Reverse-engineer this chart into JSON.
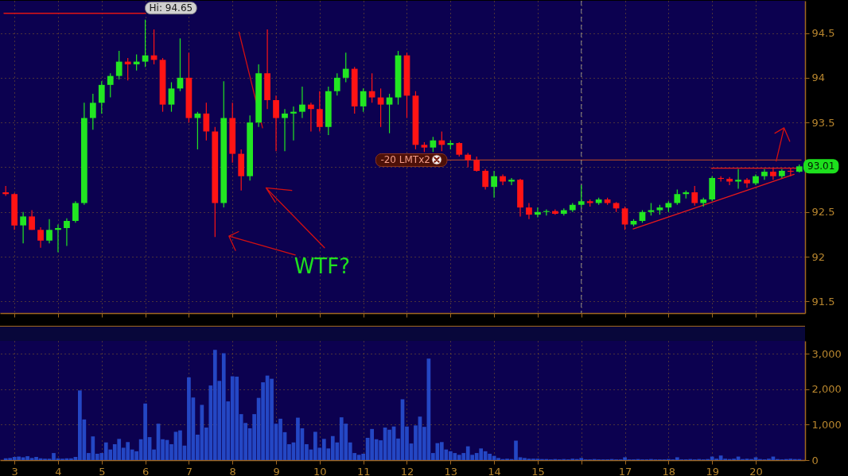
{
  "chart_data": [
    {
      "type": "candlestick",
      "x": [
        2.8,
        3,
        3.2,
        3.4,
        3.6,
        3.8,
        4,
        4.2,
        4.4,
        4.6,
        4.8,
        5,
        5.2,
        5.4,
        5.6,
        5.8,
        6,
        6.2,
        6.4,
        6.6,
        6.8,
        7,
        7.2,
        7.4,
        7.6,
        7.8,
        8,
        8.2,
        8.4,
        8.6,
        8.8,
        9,
        9.2,
        9.4,
        9.6,
        9.8,
        10,
        10.2,
        10.4,
        10.6,
        10.8,
        11,
        11.2,
        11.4,
        11.6,
        11.8,
        12,
        12.2,
        12.4,
        12.6,
        12.8,
        13,
        13.2,
        13.4,
        13.6,
        13.8,
        14,
        14.2,
        14.4,
        14.6,
        14.8,
        15,
        15.2,
        15.4,
        15.6,
        15.8,
        16,
        16.2,
        16.4,
        16.6,
        16.8,
        17,
        17.2,
        17.4,
        17.6,
        17.8,
        18,
        18.2,
        18.4,
        18.6,
        18.8,
        19,
        19.2,
        19.4,
        19.6,
        19.8,
        20,
        20.2,
        20.4,
        20.6,
        20.8,
        21
      ],
      "ohlc": [
        [
          92.72,
          92.79,
          92.68,
          92.7
        ],
        [
          92.7,
          92.71,
          92.3,
          92.35
        ],
        [
          92.35,
          92.5,
          92.15,
          92.45
        ],
        [
          92.45,
          92.52,
          92.3,
          92.3
        ],
        [
          92.3,
          92.33,
          92.1,
          92.18
        ],
        [
          92.18,
          92.42,
          92.15,
          92.3
        ],
        [
          92.3,
          92.36,
          92.05,
          92.32
        ],
        [
          92.32,
          92.43,
          92.12,
          92.4
        ],
        [
          92.4,
          92.62,
          92.38,
          92.6
        ],
        [
          92.6,
          93.72,
          92.58,
          93.55
        ],
        [
          93.55,
          93.82,
          93.42,
          93.72
        ],
        [
          93.72,
          93.96,
          93.6,
          93.92
        ],
        [
          93.92,
          94.05,
          93.78,
          94.02
        ],
        [
          94.02,
          94.3,
          93.98,
          94.18
        ],
        [
          94.18,
          94.22,
          93.97,
          94.15
        ],
        [
          94.15,
          94.26,
          94.08,
          94.18
        ],
        [
          94.18,
          94.65,
          94.12,
          94.25
        ],
        [
          94.25,
          94.54,
          94.15,
          94.2
        ],
        [
          94.2,
          94.22,
          93.62,
          93.7
        ],
        [
          93.7,
          93.95,
          93.62,
          93.88
        ],
        [
          93.88,
          94.44,
          93.85,
          94.0
        ],
        [
          94.0,
          94.28,
          93.5,
          93.55
        ],
        [
          93.55,
          93.62,
          93.2,
          93.6
        ],
        [
          93.6,
          93.72,
          93.3,
          93.4
        ],
        [
          93.4,
          93.45,
          92.22,
          92.6
        ],
        [
          92.6,
          93.96,
          92.55,
          93.55
        ],
        [
          93.55,
          93.72,
          93.05,
          93.15
        ],
        [
          93.15,
          93.2,
          92.74,
          92.9
        ],
        [
          92.9,
          93.58,
          92.85,
          93.5
        ],
        [
          93.5,
          94.15,
          93.45,
          94.05
        ],
        [
          94.05,
          94.54,
          93.65,
          93.75
        ],
        [
          93.75,
          93.8,
          93.18,
          93.55
        ],
        [
          93.55,
          93.65,
          93.18,
          93.6
        ],
        [
          93.6,
          93.68,
          93.3,
          93.62
        ],
        [
          93.62,
          93.9,
          93.55,
          93.7
        ],
        [
          93.7,
          93.72,
          93.4,
          93.65
        ],
        [
          93.65,
          93.85,
          93.4,
          93.45
        ],
        [
          93.45,
          93.9,
          93.36,
          93.85
        ],
        [
          93.85,
          94.05,
          93.8,
          94.0
        ],
        [
          94.0,
          94.28,
          93.95,
          94.1
        ],
        [
          94.1,
          94.12,
          93.6,
          93.68
        ],
        [
          93.68,
          93.88,
          93.62,
          93.85
        ],
        [
          93.85,
          94.05,
          93.72,
          93.78
        ],
        [
          93.78,
          93.88,
          93.45,
          93.7
        ],
        [
          93.7,
          93.82,
          93.38,
          93.78
        ],
        [
          93.78,
          94.3,
          93.7,
          94.25
        ],
        [
          94.25,
          94.28,
          93.55,
          93.8
        ],
        [
          93.8,
          93.85,
          93.2,
          93.25
        ],
        [
          93.25,
          93.28,
          93.17,
          93.22
        ],
        [
          93.22,
          93.34,
          93.17,
          93.3
        ],
        [
          93.3,
          93.4,
          93.18,
          93.25
        ],
        [
          93.25,
          93.3,
          93.2,
          93.27
        ],
        [
          93.27,
          93.28,
          93.12,
          93.14
        ],
        [
          93.14,
          93.16,
          93.0,
          93.08
        ],
        [
          93.08,
          93.12,
          92.95,
          92.96
        ],
        [
          92.96,
          92.98,
          92.75,
          92.78
        ],
        [
          92.78,
          92.96,
          92.66,
          92.9
        ],
        [
          92.9,
          92.92,
          92.8,
          92.84
        ],
        [
          92.84,
          92.88,
          92.8,
          92.86
        ],
        [
          92.86,
          92.87,
          92.45,
          92.55
        ],
        [
          92.55,
          92.6,
          92.42,
          92.47
        ],
        [
          92.47,
          92.55,
          92.44,
          92.5
        ],
        [
          92.5,
          92.53,
          92.46,
          92.51
        ],
        [
          92.51,
          92.53,
          92.47,
          92.48
        ],
        [
          92.48,
          92.54,
          92.46,
          92.52
        ],
        [
          92.52,
          92.6,
          92.5,
          92.58
        ],
        [
          92.58,
          92.8,
          92.55,
          92.62
        ],
        [
          92.62,
          92.64,
          92.56,
          92.6
        ],
        [
          92.6,
          92.66,
          92.58,
          92.64
        ],
        [
          92.64,
          92.66,
          92.58,
          92.6
        ],
        [
          92.6,
          92.61,
          92.5,
          92.54
        ],
        [
          92.54,
          92.56,
          92.3,
          92.36
        ],
        [
          92.36,
          92.42,
          92.34,
          92.4
        ],
        [
          92.4,
          92.52,
          92.38,
          92.5
        ],
        [
          92.5,
          92.6,
          92.46,
          92.52
        ],
        [
          92.52,
          92.58,
          92.47,
          92.55
        ],
        [
          92.55,
          92.62,
          92.5,
          92.6
        ],
        [
          92.6,
          92.75,
          92.58,
          92.7
        ],
        [
          92.7,
          92.74,
          92.65,
          92.72
        ],
        [
          92.72,
          92.79,
          92.57,
          92.6
        ],
        [
          92.6,
          92.66,
          92.56,
          92.64
        ],
        [
          92.64,
          92.9,
          92.62,
          92.88
        ],
        [
          92.88,
          92.9,
          92.84,
          92.87
        ],
        [
          92.87,
          92.89,
          92.8,
          92.84
        ],
        [
          92.84,
          92.98,
          92.76,
          92.86
        ],
        [
          92.86,
          92.88,
          92.77,
          92.82
        ],
        [
          92.82,
          92.92,
          92.8,
          92.9
        ],
        [
          92.9,
          92.98,
          92.86,
          92.95
        ],
        [
          92.95,
          92.99,
          92.86,
          92.9
        ],
        [
          92.9,
          92.98,
          92.88,
          92.96
        ],
        [
          92.96,
          92.99,
          92.9,
          92.95
        ],
        [
          92.95,
          93.03,
          92.94,
          93.01
        ]
      ],
      "colors": [
        "#ff1414",
        "#ff1414",
        "#22e622",
        "#ff1414",
        "#ff1414",
        "#22e622",
        "#22e622",
        "#22e622",
        "#22e622",
        "#22e622",
        "#22e622",
        "#22e622",
        "#22e622",
        "#22e622",
        "#ff1414",
        "#22e622",
        "#22e622",
        "#ff1414",
        "#ff1414",
        "#22e622",
        "#22e622",
        "#ff1414",
        "#22e622",
        "#ff1414",
        "#ff1414",
        "#22e622",
        "#ff1414",
        "#ff1414",
        "#22e622",
        "#22e622",
        "#ff1414",
        "#ff1414",
        "#22e622",
        "#22e622",
        "#22e622",
        "#ff1414",
        "#ff1414",
        "#22e622",
        "#22e622",
        "#22e622",
        "#ff1414",
        "#22e622",
        "#ff1414",
        "#ff1414",
        "#22e622",
        "#22e622",
        "#ff1414",
        "#ff1414",
        "#ff1414",
        "#22e622",
        "#ff1414",
        "#22e622",
        "#ff1414",
        "#ff1414",
        "#ff1414",
        "#ff1414",
        "#22e622",
        "#ff1414",
        "#22e622",
        "#ff1414",
        "#ff1414",
        "#22e622",
        "#22e622",
        "#ff1414",
        "#22e622",
        "#22e622",
        "#22e622",
        "#ff1414",
        "#22e622",
        "#ff1414",
        "#ff1414",
        "#ff1414",
        "#22e622",
        "#22e622",
        "#22e622",
        "#22e622",
        "#22e622",
        "#22e622",
        "#22e622",
        "#ff1414",
        "#22e622",
        "#22e622",
        "#ff1414",
        "#ff1414",
        "#22e622",
        "#ff1414",
        "#22e622",
        "#22e622",
        "#ff1414",
        "#22e622",
        "#ff1414",
        "#22e622"
      ],
      "series": [
        {
          "type": "line",
          "color": "#e01414",
          "x": [
            2.76,
            6.0
          ],
          "values": [
            94.72,
            94.72
          ]
        },
        {
          "type": "line",
          "color": "#a0402c",
          "x": [
            12.92,
            21.04
          ],
          "values": [
            93.08,
            93.08
          ]
        },
        {
          "type": "line",
          "color": "#e81a1a",
          "x": [
            17.19,
            20.88
          ],
          "values": [
            92.31,
            92.92
          ]
        },
        {
          "type": "line",
          "color": "#e81a1a",
          "x": [
            18.98,
            20.95
          ],
          "values": [
            92.99,
            92.99
          ]
        },
        {
          "type": "line",
          "color": "#d41010",
          "x": [
            8.15,
            8.69
          ],
          "values": [
            94.51,
            93.44
          ]
        },
        {
          "type": "line",
          "color": "#d41010",
          "x": [
            9.44,
            7.92,
            8.14,
            7.92,
            8.07
          ],
          "values": [
            92.02,
            92.23,
            92.28,
            92.23,
            92.07
          ]
        },
        {
          "type": "line",
          "color": "#d41010",
          "x": [
            10.11,
            8.77,
            9.36,
            8.77,
            8.98
          ],
          "values": [
            92.1,
            92.77,
            92.74,
            92.77,
            92.61
          ]
        },
        {
          "type": "line",
          "color": "#d41010",
          "x": [
            20.47,
            20.65,
            20.44,
            20.65,
            20.78
          ],
          "values": [
            93.07,
            93.44,
            93.38,
            93.44,
            93.29
          ]
        }
      ],
      "xlim": [
        2.76,
        21.04
      ],
      "xticks": [
        3,
        4,
        5,
        6,
        7,
        8,
        9,
        10,
        11,
        12,
        13,
        14,
        15,
        {
          "value": 16,
          "label": null
        },
        17,
        18,
        19,
        20
      ],
      "ylim": [
        91.37,
        94.86
      ],
      "yticks": [
        91.5,
        92,
        92.5,
        {
          "value": 93,
          "label": null
        },
        93.5,
        94,
        94.5
      ],
      "grid": true,
      "tick_labels": "y",
      "ref_lines": [
        {
          "axis": "x",
          "value": 16,
          "color": "#8c8c8c",
          "line_style": "dashed"
        }
      ],
      "annotations": [
        {
          "text": "Hi: 94.65",
          "x": 6.0,
          "y": 94.65
        },
        {
          "text": "-20 LMTx2",
          "x": 12.92,
          "y": 93.08
        },
        {
          "text": "93.01",
          "x": 21.04,
          "y": 93.01
        },
        "WTF?"
      ]
    },
    {
      "type": "bar",
      "color": "#2447c4",
      "x": [
        2.8,
        2.9,
        3,
        3.1,
        3.2,
        3.3,
        3.4,
        3.5,
        3.6,
        3.7,
        3.8,
        3.9,
        4,
        4.1,
        4.2,
        4.3,
        4.4,
        4.5,
        4.6,
        4.7,
        4.8,
        4.9,
        5,
        5.1,
        5.2,
        5.3,
        5.4,
        5.5,
        5.6,
        5.7,
        5.8,
        5.9,
        6,
        6.1,
        6.2,
        6.3,
        6.4,
        6.5,
        6.6,
        6.7,
        6.8,
        6.9,
        7,
        7.1,
        7.2,
        7.3,
        7.4,
        7.5,
        7.6,
        7.7,
        7.8,
        7.9,
        8,
        8.1,
        8.2,
        8.3,
        8.4,
        8.5,
        8.6,
        8.7,
        8.8,
        8.9,
        9,
        9.1,
        9.2,
        9.3,
        9.4,
        9.5,
        9.6,
        9.7,
        9.8,
        9.9,
        10,
        10.1,
        10.2,
        10.3,
        10.4,
        10.5,
        10.6,
        10.7,
        10.8,
        10.9,
        11,
        11.1,
        11.2,
        11.3,
        11.4,
        11.5,
        11.6,
        11.7,
        11.8,
        11.9,
        12,
        12.1,
        12.2,
        12.3,
        12.4,
        12.5,
        12.6,
        12.7,
        12.8,
        12.9,
        13,
        13.1,
        13.2,
        13.3,
        13.4,
        13.5,
        13.6,
        13.7,
        13.8,
        13.9,
        14,
        14.1,
        14.2,
        14.3,
        14.4,
        14.5,
        14.6,
        14.7,
        14.8,
        14.9,
        15,
        15.1,
        15.2,
        15.3,
        15.4,
        15.5,
        15.6,
        15.7,
        15.8,
        15.9,
        16,
        16.1,
        16.2,
        16.3,
        16.4,
        16.5,
        16.6,
        16.7,
        16.8,
        16.9,
        17,
        17.1,
        17.2,
        17.3,
        17.4,
        17.5,
        17.6,
        17.7,
        17.8,
        17.9,
        18,
        18.1,
        18.2,
        18.3,
        18.4,
        18.5,
        18.6,
        18.7,
        18.8,
        18.9,
        19,
        19.1,
        19.2,
        19.3,
        19.4,
        19.5,
        19.6,
        19.7,
        19.8,
        19.9,
        20,
        20.1,
        20.2,
        20.3,
        20.4,
        20.5,
        20.6,
        20.7,
        20.8,
        20.9,
        21
      ],
      "values": [
        50,
        60,
        90,
        100,
        80,
        110,
        60,
        90,
        50,
        40,
        40,
        200,
        50,
        40,
        50,
        50,
        90,
        1970,
        1150,
        200,
        670,
        180,
        200,
        500,
        300,
        450,
        600,
        350,
        510,
        300,
        250,
        590,
        1600,
        650,
        300,
        1030,
        590,
        570,
        450,
        800,
        840,
        410,
        2340,
        1770,
        720,
        1560,
        920,
        2110,
        3120,
        2240,
        3020,
        1660,
        2370,
        2360,
        1300,
        1050,
        900,
        1300,
        1760,
        2200,
        2390,
        2300,
        1030,
        1170,
        790,
        450,
        500,
        1200,
        900,
        450,
        300,
        800,
        350,
        600,
        330,
        680,
        500,
        1210,
        1030,
        500,
        200,
        150,
        180,
        630,
        880,
        590,
        560,
        920,
        860,
        950,
        610,
        1720,
        950,
        470,
        980,
        1230,
        940,
        2870,
        200,
        480,
        510,
        300,
        250,
        200,
        150,
        200,
        390,
        150,
        200,
        330,
        250,
        180,
        120,
        60,
        30,
        40,
        30,
        550,
        80,
        60,
        40,
        40,
        40,
        30,
        30,
        20,
        30,
        20,
        30,
        20,
        40,
        30,
        60,
        20,
        20,
        30,
        20,
        20,
        20,
        30,
        20,
        20,
        80,
        20,
        20,
        30,
        20,
        20,
        30,
        20,
        20,
        20,
        30,
        20,
        80,
        20,
        20,
        30,
        20,
        30,
        20,
        30,
        100,
        40,
        130,
        40,
        30,
        40,
        100,
        30,
        40,
        30,
        80,
        30,
        20,
        40,
        100,
        30,
        20,
        30,
        40,
        30,
        30
      ],
      "xlim": [
        2.76,
        21.04
      ],
      "xticks": [
        3,
        4,
        5,
        6,
        7,
        8,
        9,
        10,
        11,
        12,
        13,
        14,
        15,
        {
          "value": 16,
          "label": null
        },
        17,
        18,
        19,
        20
      ],
      "ylim": [
        0,
        3370
      ],
      "yticks": [
        0,
        {
          "value": 1000,
          "label": "1,000"
        },
        {
          "value": 2000,
          "label": "2,000"
        },
        {
          "value": 3000,
          "label": "3,000"
        }
      ],
      "grid": true
    }
  ]
}
